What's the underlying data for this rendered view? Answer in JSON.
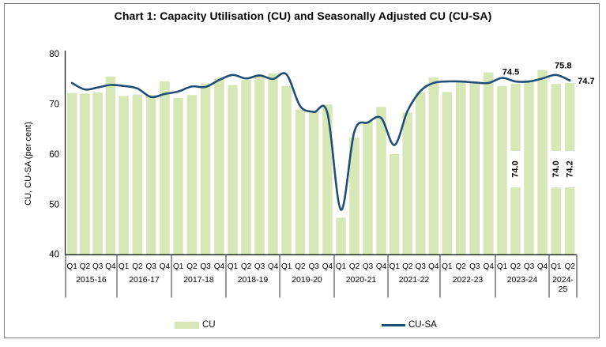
{
  "title": "Chart 1: Capacity Utilisation (CU) and Seasonally Adjusted CU (CU-SA)",
  "y_axis": {
    "title": "CU, CU-SA (per cent)",
    "ticks": [
      80,
      70,
      60,
      50,
      40
    ],
    "min": 40,
    "max": 80
  },
  "legend": [
    {
      "label": "CU",
      "type": "bar",
      "color": "#d7e7b5"
    },
    {
      "label": "CU-SA",
      "type": "line",
      "color": "#1f4e79"
    }
  ],
  "chart_data": {
    "type": "combo_bar_line",
    "categories": [
      {
        "year": "2015-16",
        "quarters": [
          "Q1",
          "Q2",
          "Q3",
          "Q4"
        ]
      },
      {
        "year": "2016-17",
        "quarters": [
          "Q1",
          "Q2",
          "Q3",
          "Q4"
        ]
      },
      {
        "year": "2017-18",
        "quarters": [
          "Q1",
          "Q2",
          "Q3",
          "Q4"
        ]
      },
      {
        "year": "2018-19",
        "quarters": [
          "Q1",
          "Q2",
          "Q3",
          "Q4"
        ]
      },
      {
        "year": "2019-20",
        "quarters": [
          "Q1",
          "Q2",
          "Q3",
          "Q4"
        ]
      },
      {
        "year": "2020-21",
        "quarters": [
          "Q1",
          "Q2",
          "Q3",
          "Q4"
        ]
      },
      {
        "year": "2021-22",
        "quarters": [
          "Q1",
          "Q2",
          "Q3",
          "Q4"
        ]
      },
      {
        "year": "2022-23",
        "quarters": [
          "Q1",
          "Q2",
          "Q3",
          "Q4"
        ]
      },
      {
        "year": "2023-24",
        "quarters": [
          "Q1",
          "Q2",
          "Q3",
          "Q4"
        ]
      },
      {
        "year": "2024-25",
        "quarters": [
          "Q1",
          "Q2"
        ]
      }
    ],
    "series": [
      {
        "name": "CU",
        "type": "bar",
        "color": "#d7e7b5",
        "values": [
          72.2,
          72.1,
          72.3,
          75.5,
          71.6,
          71.9,
          71.8,
          74.5,
          71.2,
          71.8,
          74.1,
          75.2,
          73.8,
          74.8,
          75.9,
          76.1,
          73.6,
          68.9,
          68.6,
          69.9,
          47.3,
          63.3,
          66.6,
          69.4,
          60.0,
          68.3,
          72.4,
          75.3,
          72.4,
          74.5,
          74.3,
          76.3,
          73.6,
          74.0,
          74.7,
          76.8,
          74.0,
          74.2
        ]
      },
      {
        "name": "CU-SA",
        "type": "line",
        "color": "#1f4e79",
        "values": [
          74.2,
          72.9,
          73.3,
          73.8,
          73.6,
          73.1,
          71.4,
          72.0,
          72.5,
          73.5,
          73.4,
          74.8,
          75.8,
          75.1,
          75.7,
          75.0,
          75.9,
          69.6,
          68.4,
          68.2,
          48.9,
          64.5,
          66.3,
          67.2,
          61.8,
          68.6,
          72.6,
          74.2,
          74.5,
          74.5,
          74.3,
          74.2,
          75.2,
          74.5,
          74.5,
          75.1,
          75.8,
          74.7
        ]
      }
    ],
    "ylim": [
      40,
      80
    ],
    "ylabel": "CU, CU-SA (per cent)",
    "grid": false,
    "legend_position": "bottom",
    "annotations": {
      "bar_value_labels": [
        {
          "text": "74.0",
          "year": "2023-24",
          "quarter": "Q2",
          "index": 33,
          "orientation": "vertical"
        },
        {
          "text": "74.0",
          "year": "2024-25",
          "quarter": "Q1",
          "index": 36,
          "orientation": "vertical"
        },
        {
          "text": "74.2",
          "year": "2024-25",
          "quarter": "Q2",
          "index": 37,
          "orientation": "vertical"
        }
      ],
      "line_value_labels": [
        {
          "text": "74.5",
          "year": "2023-24",
          "quarter": "Q2",
          "index": 33,
          "placement": "above"
        },
        {
          "text": "75.8",
          "year": "2024-25",
          "quarter": "Q1",
          "index": 36,
          "placement": "above"
        },
        {
          "text": "74.7",
          "year": "2024-25",
          "quarter": "Q2",
          "index": 37,
          "placement": "right"
        }
      ]
    }
  }
}
